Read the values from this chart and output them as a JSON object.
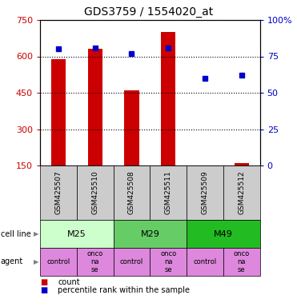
{
  "title": "GDS3759 / 1554020_at",
  "samples": [
    "GSM425507",
    "GSM425510",
    "GSM425508",
    "GSM425511",
    "GSM425509",
    "GSM425512"
  ],
  "counts": [
    590,
    630,
    460,
    700,
    148,
    160
  ],
  "percentile_ranks": [
    80,
    81,
    77,
    81,
    60,
    62
  ],
  "ylim_left": [
    150,
    750
  ],
  "ylim_right": [
    0,
    100
  ],
  "yticks_left": [
    150,
    300,
    450,
    600,
    750
  ],
  "yticks_right": [
    0,
    25,
    50,
    75,
    100
  ],
  "bar_color": "#cc0000",
  "dot_color": "#0000cc",
  "bar_width": 0.4,
  "cell_lines": [
    {
      "label": "M25",
      "span": [
        0,
        2
      ],
      "color": "#ccffcc"
    },
    {
      "label": "M29",
      "span": [
        2,
        4
      ],
      "color": "#66cc66"
    },
    {
      "label": "M49",
      "span": [
        4,
        6
      ],
      "color": "#22bb22"
    }
  ],
  "agents": [
    "control",
    "onconase",
    "control",
    "onconase",
    "control",
    "onconase"
  ],
  "agent_color": "#dd88dd",
  "sample_bg_color": "#cccccc",
  "legend_count_color": "#cc0000",
  "legend_pct_color": "#0000cc",
  "axis_label_color_left": "#cc0000",
  "axis_label_color_right": "#0000cc"
}
